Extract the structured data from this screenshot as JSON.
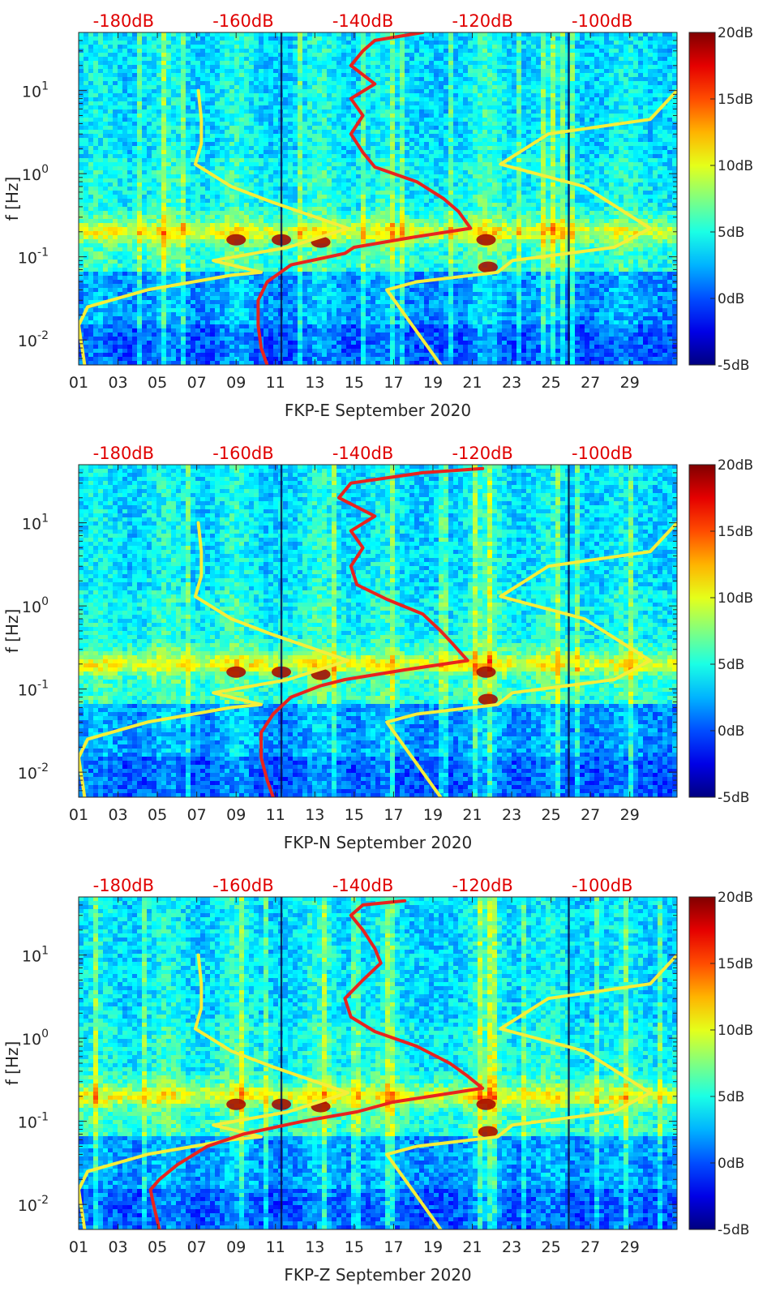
{
  "colorbar": {
    "ticks": [
      "20dB",
      "15dB",
      "10dB",
      "5dB",
      "0dB",
      "-5dB"
    ]
  },
  "colors": {
    "red_curve": "#e8231e",
    "yellow_curves": "#f5ee3a",
    "top_labels": "#e00000"
  },
  "chart_data": [
    {
      "type": "heatmap",
      "title": "",
      "xlabel": "FKP-E September 2020",
      "ylabel": "f [Hz]",
      "x_tick_labels": [
        "01",
        "03",
        "05",
        "07",
        "09",
        "11",
        "13",
        "15",
        "17",
        "19",
        "21",
        "23",
        "25",
        "27",
        "29"
      ],
      "x_ticks": [
        1,
        3,
        5,
        7,
        9,
        11,
        13,
        15,
        17,
        19,
        21,
        23,
        25,
        27,
        29
      ],
      "xlim": [
        1,
        31.4
      ],
      "y_scale": "log",
      "ylim": [
        0.005,
        50
      ],
      "y_tick_labels": [
        "10",
        "10",
        "10",
        "10"
      ],
      "y_tick_exponents": [
        "1",
        "0",
        "-1",
        "-2"
      ],
      "top_axis_labels": [
        "-180dB",
        "-160dB",
        "-140dB",
        "-120dB",
        "-100dB"
      ],
      "top_axis_ticks": [
        -180,
        -160,
        -140,
        -120,
        -100
      ],
      "top_axis_range": [
        -187.5,
        -87.5
      ],
      "colorbar_range_db": [
        -5,
        20
      ],
      "series": [
        {
          "color": "yellow",
          "f": [
            10,
            4.5,
            2.3,
            1.3,
            0.7,
            0.45,
            0.22,
            0.13,
            0.09,
            0.065,
            0.06,
            0.04,
            0.025,
            0.015,
            0.005
          ],
          "level_db": [
            -167.5,
            -167.0,
            -167.0,
            -168.0,
            -162.0,
            -155.0,
            -142.5,
            -152.5,
            -165.0,
            -157.0,
            -162.0,
            -176.0,
            -186.0,
            -187.5,
            -186.5
          ]
        },
        {
          "color": "yellow",
          "f": [
            10,
            4.5,
            3.0,
            1.3,
            0.7,
            0.22,
            0.13,
            0.09,
            0.065,
            0.05,
            0.04,
            0.005
          ],
          "level_db": [
            -87.5,
            -92.0,
            -109.0,
            -117.0,
            -103.0,
            -92.0,
            -98.0,
            -115.0,
            -117.5,
            -131.0,
            -136.0,
            -127.0
          ]
        },
        {
          "color": "red",
          "f": [
            50,
            40,
            30,
            20,
            12,
            8,
            5,
            3,
            1.8,
            1.2,
            0.8,
            0.5,
            0.35,
            0.22,
            0.17,
            0.13,
            0.11,
            0.08,
            0.05,
            0.03,
            0.015,
            0.008,
            0.005
          ],
          "level_db": [
            -130.0,
            -138.0,
            -140.0,
            -142.0,
            -138.0,
            -142.0,
            -140.0,
            -142.0,
            -140.0,
            -138.0,
            -131.0,
            -126.5,
            -124.0,
            -122.0,
            -132.0,
            -141.5,
            -143.0,
            -152.0,
            -156.0,
            -157.5,
            -157.5,
            -157.0,
            -156.0
          ]
        }
      ]
    },
    {
      "type": "heatmap",
      "title": "",
      "xlabel": "FKP-N September 2020",
      "ylabel": "f [Hz]",
      "x_tick_labels": [
        "01",
        "03",
        "05",
        "07",
        "09",
        "11",
        "13",
        "15",
        "17",
        "19",
        "21",
        "23",
        "25",
        "27",
        "29"
      ],
      "x_ticks": [
        1,
        3,
        5,
        7,
        9,
        11,
        13,
        15,
        17,
        19,
        21,
        23,
        25,
        27,
        29
      ],
      "xlim": [
        1,
        31.4
      ],
      "y_scale": "log",
      "ylim": [
        0.005,
        50
      ],
      "y_tick_labels": [
        "10",
        "10",
        "10",
        "10"
      ],
      "y_tick_exponents": [
        "1",
        "0",
        "-1",
        "-2"
      ],
      "top_axis_labels": [
        "-180dB",
        "-160dB",
        "-140dB",
        "-120dB",
        "-100dB"
      ],
      "top_axis_ticks": [
        -180,
        -160,
        -140,
        -120,
        -100
      ],
      "top_axis_range": [
        -187.5,
        -87.5
      ],
      "colorbar_range_db": [
        -5,
        20
      ],
      "series": [
        {
          "color": "yellow",
          "f": [
            10,
            4.5,
            2.3,
            1.3,
            0.7,
            0.45,
            0.22,
            0.13,
            0.09,
            0.065,
            0.06,
            0.04,
            0.025,
            0.015,
            0.005
          ],
          "level_db": [
            -167.5,
            -167.0,
            -167.0,
            -168.0,
            -162.0,
            -155.0,
            -142.5,
            -152.5,
            -165.0,
            -157.0,
            -162.0,
            -176.0,
            -186.0,
            -187.5,
            -186.5
          ]
        },
        {
          "color": "yellow",
          "f": [
            10,
            4.5,
            3.0,
            1.3,
            0.7,
            0.22,
            0.13,
            0.09,
            0.065,
            0.05,
            0.04,
            0.005
          ],
          "level_db": [
            -87.5,
            -92.0,
            -109.0,
            -117.0,
            -103.0,
            -92.0,
            -98.0,
            -115.0,
            -117.5,
            -131.0,
            -136.0,
            -127.0
          ]
        },
        {
          "color": "red",
          "f": [
            45,
            40,
            30,
            20,
            12,
            8,
            5,
            3,
            1.8,
            1.2,
            0.8,
            0.5,
            0.35,
            0.22,
            0.17,
            0.13,
            0.11,
            0.08,
            0.05,
            0.03,
            0.015,
            0.008,
            0.005
          ],
          "level_db": [
            -120.0,
            -130.0,
            -142.0,
            -144.0,
            -138.0,
            -142.0,
            -140.0,
            -142.0,
            -141.0,
            -136.0,
            -130.0,
            -127.0,
            -125.0,
            -122.5,
            -133.0,
            -143.0,
            -147.0,
            -152.0,
            -155.0,
            -157.0,
            -157.0,
            -156.0,
            -155.0
          ]
        }
      ]
    },
    {
      "type": "heatmap",
      "title": "",
      "xlabel": "FKP-Z September 2020",
      "ylabel": "f [Hz]",
      "x_tick_labels": [
        "01",
        "03",
        "05",
        "07",
        "09",
        "11",
        "13",
        "15",
        "17",
        "19",
        "21",
        "23",
        "25",
        "27",
        "29"
      ],
      "x_ticks": [
        1,
        3,
        5,
        7,
        9,
        11,
        13,
        15,
        17,
        19,
        21,
        23,
        25,
        27,
        29
      ],
      "xlim": [
        1,
        31.4
      ],
      "y_scale": "log",
      "ylim": [
        0.005,
        50
      ],
      "y_tick_labels": [
        "10",
        "10",
        "10",
        "10"
      ],
      "y_tick_exponents": [
        "1",
        "0",
        "-1",
        "-2"
      ],
      "top_axis_labels": [
        "-180dB",
        "-160dB",
        "-140dB",
        "-120dB",
        "-100dB"
      ],
      "top_axis_ticks": [
        -180,
        -160,
        -140,
        -120,
        -100
      ],
      "top_axis_range": [
        -187.5,
        -87.5
      ],
      "colorbar_range_db": [
        -5,
        20
      ],
      "series": [
        {
          "color": "yellow",
          "f": [
            10,
            4.5,
            2.3,
            1.3,
            0.7,
            0.45,
            0.22,
            0.13,
            0.09,
            0.065,
            0.06,
            0.04,
            0.025,
            0.015,
            0.005
          ],
          "level_db": [
            -167.5,
            -167.0,
            -167.0,
            -168.0,
            -162.0,
            -155.0,
            -142.5,
            -152.5,
            -165.0,
            -157.0,
            -162.0,
            -176.0,
            -186.0,
            -187.5,
            -186.5
          ]
        },
        {
          "color": "yellow",
          "f": [
            10,
            4.5,
            3.0,
            1.3,
            0.7,
            0.22,
            0.13,
            0.09,
            0.065,
            0.05,
            0.04,
            0.005
          ],
          "level_db": [
            -87.5,
            -92.0,
            -109.0,
            -117.0,
            -103.0,
            -92.0,
            -98.0,
            -115.0,
            -117.5,
            -131.0,
            -136.0,
            -127.0
          ]
        },
        {
          "color": "red",
          "f": [
            45,
            40,
            30,
            20,
            12,
            8,
            5,
            3,
            1.8,
            1.2,
            0.8,
            0.5,
            0.35,
            0.25,
            0.17,
            0.13,
            0.1,
            0.07,
            0.05,
            0.03,
            0.02,
            0.015,
            0.01,
            0.005
          ],
          "level_db": [
            -133.0,
            -140.0,
            -142.0,
            -140.0,
            -138.0,
            -137.0,
            -140.0,
            -143.0,
            -142.0,
            -138.0,
            -131.0,
            -125.5,
            -122.5,
            -120.0,
            -135.0,
            -141.0,
            -150.0,
            -160.0,
            -166.0,
            -171.0,
            -174.0,
            -175.5,
            -175.0,
            -174.0
          ]
        }
      ]
    }
  ]
}
